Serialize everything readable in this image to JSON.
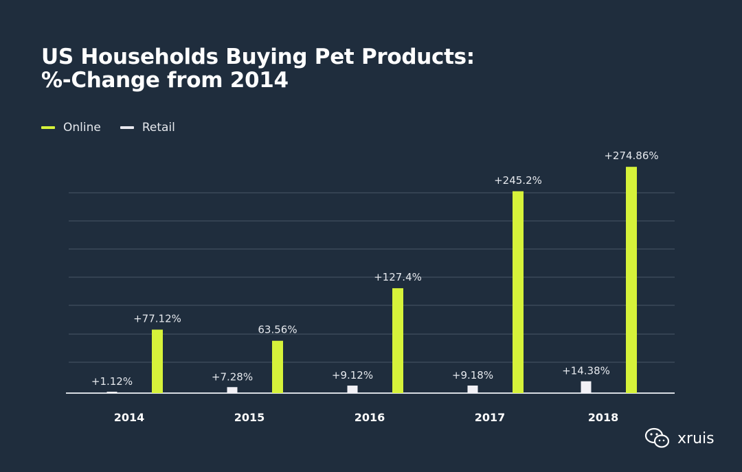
{
  "title_line1": "US Households Buying Pet Products:",
  "title_line2": "%-Change from 2014",
  "legend": [
    {
      "label": "Online",
      "color": "#d6f23a"
    },
    {
      "label": "Retail",
      "color": "#e8e8ef"
    }
  ],
  "watermark": {
    "text": "xruis",
    "icon": "wechat-icon"
  },
  "colors": {
    "background": "#1f2d3d",
    "online": "#d6f23a",
    "retail": "#f2f1f6",
    "grid": "#4a5666"
  },
  "chart_data": {
    "type": "bar",
    "categories": [
      "2014",
      "2015",
      "2016",
      "2017",
      "2018"
    ],
    "series": [
      {
        "name": "Retail",
        "values": [
          1.12,
          7.28,
          9.12,
          9.18,
          14.38
        ],
        "labels": [
          "+1.12%",
          "+7.28%",
          "+9.12%",
          "+9.18%",
          "+14.38%"
        ]
      },
      {
        "name": "Online",
        "values": [
          77.12,
          63.56,
          127.4,
          245.2,
          274.86
        ],
        "labels": [
          "+77.12%",
          "63.56%",
          "+127.4%",
          "+245.2%",
          "+274.86%"
        ]
      }
    ],
    "ylim": [
      0,
      300
    ],
    "grid": true,
    "legend_position": "top-left"
  }
}
